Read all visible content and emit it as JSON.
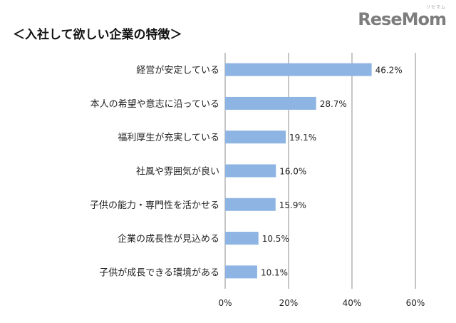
{
  "header": {
    "title": "＜入社して欲しい企業の特徴＞",
    "brand_kana": "リセマム",
    "brand_name": "ReseMom"
  },
  "chart_data": {
    "type": "bar",
    "orientation": "horizontal",
    "title": "＜入社して欲しい企業の特徴＞",
    "categories": [
      "経営が安定している",
      "本人の希望や意志に沿っている",
      "福利厚生が充実している",
      "社風や雰囲気が良い",
      "子供の能力・専門性を活かせる",
      "企業の成長性が見込める",
      "子供が成長できる環境がある"
    ],
    "values": [
      46.2,
      28.7,
      19.1,
      16.0,
      15.9,
      10.5,
      10.1
    ],
    "value_labels": [
      "46.2%",
      "28.7%",
      "19.1%",
      "16.0%",
      "15.9%",
      "10.5%",
      "10.1%"
    ],
    "xlim": [
      0,
      60
    ],
    "xticks": [
      0,
      20,
      40,
      60
    ],
    "xtick_labels": [
      "0%",
      "20%",
      "40%",
      "60%"
    ],
    "grid": true,
    "legend": "none",
    "bar_color": "#8EB4E3",
    "grid_color": "#8c8c8c"
  }
}
